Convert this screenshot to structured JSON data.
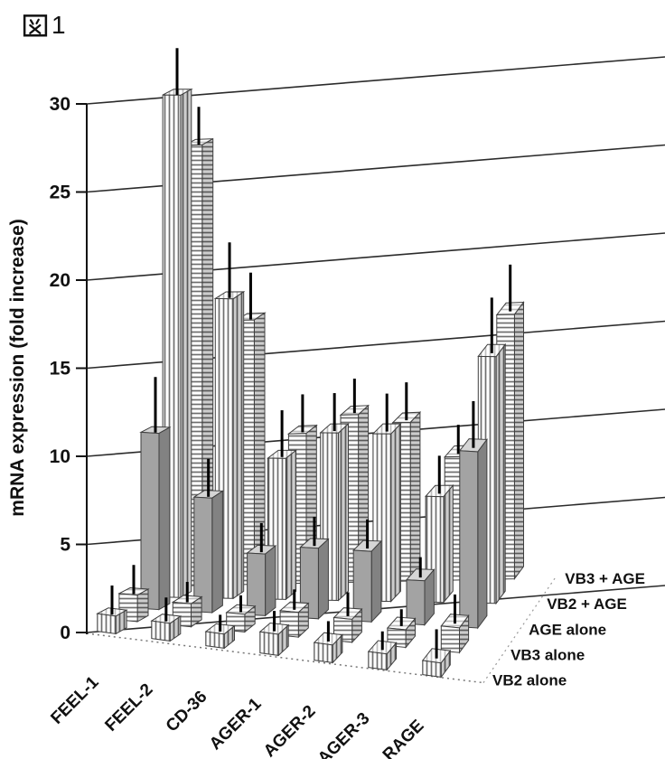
{
  "figure": {
    "label": "図1",
    "label_number": "1"
  },
  "chart_data": {
    "type": "bar",
    "projection": "3d",
    "title": "",
    "ylabel": "mRNA expression (fold increase)",
    "ylim": [
      0,
      30
    ],
    "yticks": [
      0,
      5,
      10,
      15,
      20,
      25,
      30
    ],
    "categories": [
      "FEEL-1",
      "FEEL-2",
      "CD-36",
      "AGER-1",
      "AGER-2",
      "AGER-3",
      "RAGE"
    ],
    "series": [
      {
        "name": "VB2 alone",
        "pattern": "vstripe",
        "values": [
          1.0,
          1.0,
          0.8,
          1.2,
          1.0,
          0.9,
          0.8
        ],
        "errors": [
          1.5,
          1.2,
          0.8,
          1.0,
          1.0,
          0.9,
          1.5
        ]
      },
      {
        "name": "VB3 alone",
        "pattern": "hstripe",
        "values": [
          1.5,
          1.3,
          1.0,
          1.4,
          1.3,
          1.0,
          1.4
        ],
        "errors": [
          1.5,
          1.0,
          0.8,
          1.0,
          1.2,
          0.8,
          1.5
        ]
      },
      {
        "name": "AGE alone",
        "pattern": "solid",
        "values": [
          10.0,
          6.5,
          3.5,
          4.0,
          4.0,
          2.5,
          10.0
        ],
        "errors": [
          3.0,
          2.0,
          1.5,
          1.5,
          1.5,
          1.0,
          2.5
        ]
      },
      {
        "name": "VB2 + AGE",
        "pattern": "vstripe",
        "values": [
          28.5,
          17.0,
          8.0,
          9.5,
          9.5,
          6.0,
          14.0
        ],
        "errors": [
          2.5,
          3.0,
          2.5,
          2.0,
          2.0,
          2.0,
          3.0
        ]
      },
      {
        "name": "VB3 + AGE",
        "pattern": "hstripe",
        "values": [
          25.0,
          15.0,
          8.5,
          9.5,
          9.0,
          7.0,
          15.0
        ],
        "errors": [
          2.0,
          2.5,
          2.0,
          1.8,
          2.0,
          1.5,
          2.5
        ]
      }
    ],
    "series_order": "front-to-back",
    "legend_position": "right-ends-of-rows",
    "grid": true,
    "colors": {
      "solid_fill": "#a3a3a3",
      "stripe": "#6f6f6f",
      "edge": "#3f3f3f",
      "error_bar": "#000000",
      "grid_line": "#2b2b2b",
      "background": "#ffffff",
      "text": "#111111"
    }
  }
}
